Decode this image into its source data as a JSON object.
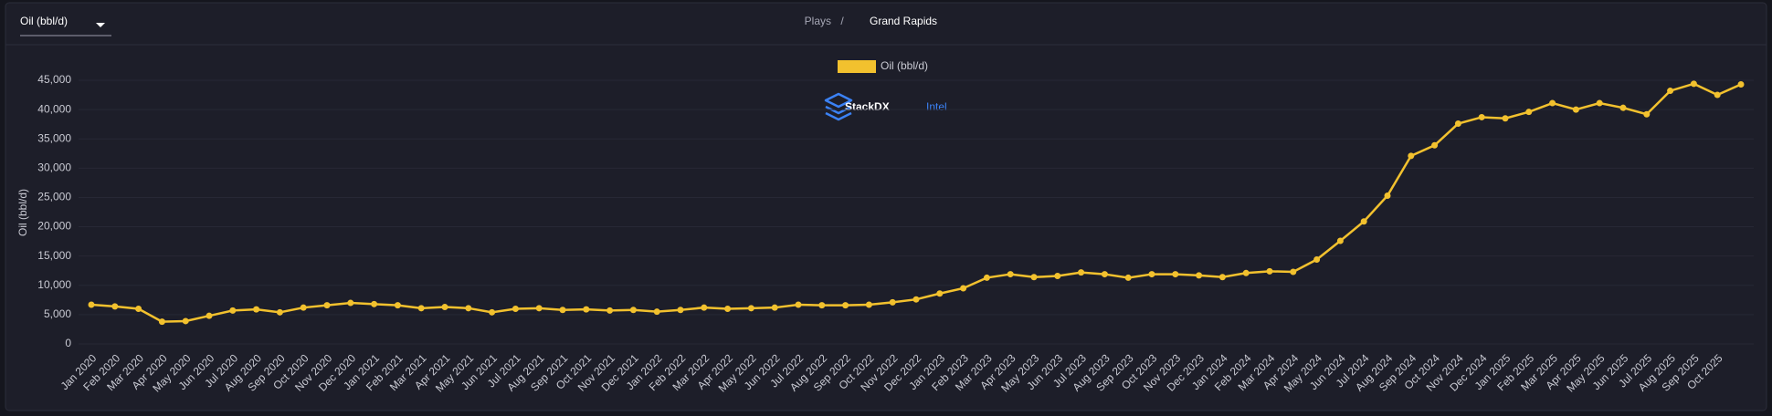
{
  "header": {
    "selector": "Oil (bbl/d)",
    "breadcrumb": [
      "Plays",
      "/",
      "Grand Rapids"
    ]
  },
  "logo": {
    "brand": "StackDX",
    "product": "Intel"
  },
  "chart_data": {
    "type": "line",
    "y_label": "Oil (bbl/d)",
    "categories": [
      "Jan 2020",
      "Feb 2020",
      "Mar 2020",
      "Apr 2020",
      "May 2020",
      "Jun 2020",
      "Jul 2020",
      "Aug 2020",
      "Sep 2020",
      "Oct 2020",
      "Nov 2020",
      "Dec 2020",
      "Jan 2021",
      "Feb 2021",
      "Mar 2021",
      "Apr 2021",
      "May 2021",
      "Jun 2021",
      "Jul 2021",
      "Aug 2021",
      "Sep 2021",
      "Oct 2021",
      "Nov 2021",
      "Dec 2021",
      "Jan 2022",
      "Feb 2022",
      "Mar 2022",
      "Apr 2022",
      "May 2022",
      "Jun 2022",
      "Jul 2022",
      "Aug 2022",
      "Sep 2022",
      "Oct 2022",
      "Nov 2022",
      "Dec 2022",
      "Jan 2023",
      "Feb 2023",
      "Mar 2023",
      "Apr 2023",
      "May 2023",
      "Jun 2023",
      "Jul 2023",
      "Aug 2023",
      "Sep 2023",
      "Oct 2023",
      "Nov 2023",
      "Dec 2023",
      "Jan 2024",
      "Feb 2024",
      "Mar 2024",
      "Apr 2024",
      "May 2024",
      "Jun 2024",
      "Jul 2024",
      "Aug 2024",
      "Sep 2024",
      "Oct 2024",
      "Nov 2024",
      "Dec 2024",
      "Jan 2025",
      "Feb 2025",
      "Mar 2025",
      "Apr 2025",
      "May 2025",
      "Jun 2025",
      "Jul 2025",
      "Aug 2025",
      "Sep 2025",
      "Oct 2025",
      null
    ],
    "series": [
      {
        "name": "Oil (bbl/d)",
        "color": "#f2c12e",
        "values": [
          6700,
          6400,
          6000,
          3800,
          3900,
          4800,
          5700,
          5900,
          5400,
          6200,
          6600,
          7000,
          6800,
          6600,
          6100,
          6300,
          6100,
          5400,
          6000,
          6100,
          5800,
          5900,
          5700,
          5800,
          5500,
          5800,
          6200,
          6000,
          6100,
          6200,
          6700,
          6600,
          6600,
          6700,
          7100,
          7600,
          8600,
          9500,
          11300,
          11900,
          11400,
          11600,
          12200,
          11900,
          11300,
          11900,
          11900,
          11700,
          11400,
          12100,
          12400,
          12300,
          14400,
          17600,
          20900,
          25300,
          32100,
          33900,
          37600,
          38700,
          38500,
          39600,
          41100,
          40000,
          41100,
          40300,
          39200,
          43200,
          44400,
          42500,
          44300
        ]
      }
    ],
    "ylim": [
      0,
      45000
    ],
    "yticks": [
      0,
      {
        "value": 5000,
        "label": "5,000"
      },
      {
        "value": 10000,
        "label": "10,000"
      },
      {
        "value": 15000,
        "label": "15,000"
      },
      {
        "value": 20000,
        "label": "20,000"
      },
      {
        "value": 25000,
        "label": "25,000"
      },
      {
        "value": 30000,
        "label": "30,000"
      },
      {
        "value": 35000,
        "label": "35,000"
      },
      {
        "value": 40000,
        "label": "40,000"
      },
      {
        "value": 45000,
        "label": "45,000"
      }
    ],
    "grid": true,
    "legend": "top"
  }
}
